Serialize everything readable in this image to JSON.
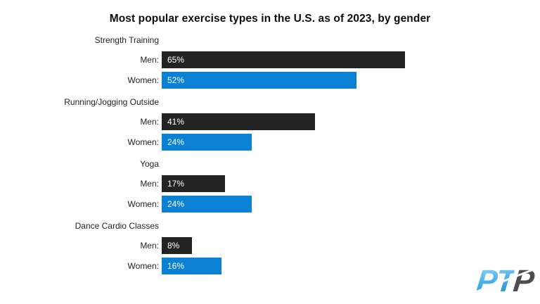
{
  "chart_data": {
    "type": "bar",
    "orientation": "horizontal",
    "title": "Most popular exercise types in the U.S. as of 2023, by gender",
    "categories": [
      "Strength Training",
      "Running/Jogging Outside",
      "Yoga",
      "Dance Cardio Classes"
    ],
    "series": [
      {
        "name": "Men",
        "color": "#232323",
        "values": [
          65,
          41,
          17,
          8
        ]
      },
      {
        "name": "Women",
        "color": "#0b81d3",
        "values": [
          52,
          24,
          24,
          16
        ]
      }
    ],
    "value_suffix": "%",
    "value_label_color": "#ffffff",
    "xlim": [
      0,
      100
    ],
    "axes": "hidden",
    "grid": false,
    "legend": "none"
  },
  "logo": {
    "text_primary": "PT",
    "text_secondary": "P",
    "gradient_top": "#9bdcf6",
    "gradient_bottom": "#1286cc",
    "secondary_color": "#4d4d4d"
  }
}
